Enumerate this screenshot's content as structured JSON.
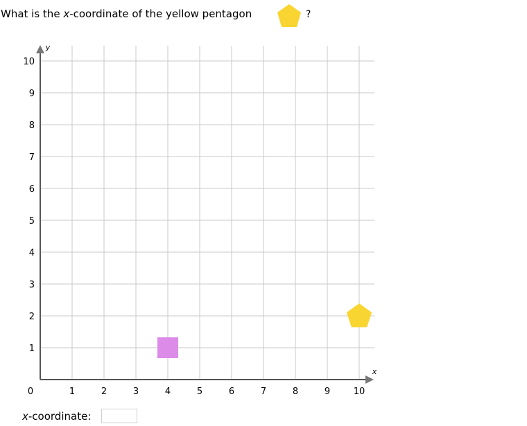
{
  "question": {
    "prefix": "What is the ",
    "variable": "x",
    "suffix": "-coordinate of the yellow pentagon",
    "trailing": "?"
  },
  "answer": {
    "variable": "x",
    "label_suffix": "-coordinate:",
    "value": ""
  },
  "colors": {
    "pentagon": "#f9d531",
    "square": "#dc8be8",
    "grid": "#c8c8c8",
    "axis": "#555555"
  },
  "chart_data": {
    "type": "scatter",
    "xlabel": "x",
    "ylabel": "y",
    "xlim": [
      0,
      10
    ],
    "ylim": [
      0,
      10
    ],
    "grid": true,
    "x_ticks": [
      "0",
      "1",
      "2",
      "3",
      "4",
      "5",
      "6",
      "7",
      "8",
      "9",
      "10"
    ],
    "y_ticks": [
      "1",
      "2",
      "3",
      "4",
      "5",
      "6",
      "7",
      "8",
      "9",
      "10"
    ],
    "points": [
      {
        "shape": "square",
        "color": "#dc8be8",
        "x": 4,
        "y": 1
      },
      {
        "shape": "pentagon",
        "color": "#f9d531",
        "x": 10,
        "y": 2
      }
    ]
  }
}
